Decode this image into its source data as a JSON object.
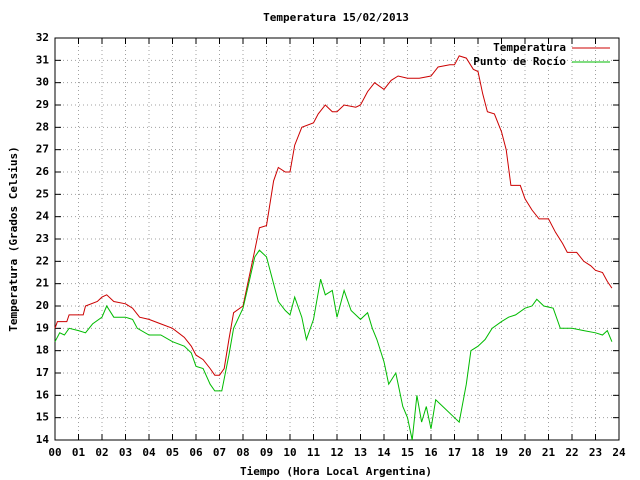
{
  "chart_data": {
    "type": "line",
    "title": "Temperatura 15/02/2013",
    "xlabel": "Tiempo (Hora Local Argentina)",
    "ylabel": "Temperatura (Grados Celsius)",
    "xlim": [
      0,
      24
    ],
    "xticks": [
      {
        "value": 0,
        "label": "00"
      },
      {
        "value": 1,
        "label": "01"
      },
      {
        "value": 2,
        "label": "02"
      },
      {
        "value": 3,
        "label": "03"
      },
      {
        "value": 4,
        "label": "04"
      },
      {
        "value": 5,
        "label": "05"
      },
      {
        "value": 6,
        "label": "06"
      },
      {
        "value": 7,
        "label": "07"
      },
      {
        "value": 8,
        "label": "08"
      },
      {
        "value": 9,
        "label": "09"
      },
      10,
      11,
      12,
      13,
      14,
      15,
      16,
      17,
      18,
      19,
      20,
      21,
      22,
      23,
      24
    ],
    "ylim": [
      14,
      32
    ],
    "yticks": [
      14,
      15,
      16,
      17,
      18,
      19,
      20,
      21,
      22,
      23,
      24,
      25,
      26,
      27,
      28,
      29,
      30,
      31,
      32
    ],
    "grid": true,
    "legend": "top-right",
    "series": [
      {
        "name": "Temperatura",
        "color": "#cc0000",
        "x": [
          0,
          0.1,
          0.5,
          0.6,
          1,
          1.2,
          1.3,
          1.8,
          2.0,
          2.2,
          2.5,
          3.0,
          3.3,
          3.6,
          4.0,
          4.5,
          5.0,
          5.5,
          5.8,
          6.0,
          6.3,
          6.6,
          6.8,
          7.0,
          7.2,
          7.4,
          7.6,
          8.0,
          8.2,
          8.5,
          8.7,
          9.0,
          9.3,
          9.5,
          9.8,
          10.0,
          10.2,
          10.5,
          11,
          11.2,
          11.5,
          11.8,
          12.0,
          12.3,
          12.8,
          13.0,
          13.3,
          13.6,
          14.0,
          14.3,
          14.6,
          15.0,
          15.5,
          16.0,
          16.3,
          16.8,
          17.0,
          17.2,
          17.5,
          17.8,
          18.0,
          18.2,
          18.4,
          18.7,
          19.0,
          19.2,
          19.4,
          19.8,
          20.0,
          20.3,
          20.6,
          21.0,
          21.3,
          21.6,
          21.8,
          22.2,
          22.5,
          22.8,
          23.0,
          23.3,
          23.5,
          23.7
        ],
        "values": [
          19.0,
          19.3,
          19.3,
          19.6,
          19.6,
          19.6,
          20.0,
          20.2,
          20.4,
          20.5,
          20.2,
          20.1,
          19.9,
          19.5,
          19.4,
          19.2,
          19.0,
          18.6,
          18.2,
          17.8,
          17.6,
          17.2,
          16.9,
          16.9,
          17.2,
          18.5,
          19.7,
          20.0,
          21.0,
          22.5,
          23.5,
          23.6,
          25.6,
          26.2,
          26.0,
          26.0,
          27.2,
          28.0,
          28.2,
          28.6,
          29.0,
          28.7,
          28.7,
          29.0,
          28.9,
          29.0,
          29.6,
          30.0,
          29.7,
          30.1,
          30.3,
          30.2,
          30.2,
          30.3,
          30.7,
          30.8,
          30.8,
          31.2,
          31.1,
          30.6,
          30.5,
          29.5,
          28.7,
          28.6,
          27.8,
          27.0,
          25.4,
          25.4,
          24.8,
          24.3,
          23.9,
          23.9,
          23.3,
          22.8,
          22.4,
          22.4,
          22.0,
          21.8,
          21.6,
          21.5,
          21.1,
          20.8
        ]
      },
      {
        "name": "Punto de Rocío",
        "color": "#00bb00",
        "x": [
          0,
          0.2,
          0.4,
          0.6,
          1.0,
          1.3,
          1.6,
          2.0,
          2.2,
          2.5,
          3.0,
          3.3,
          3.5,
          4.0,
          4.5,
          5.0,
          5.5,
          5.8,
          6.0,
          6.3,
          6.6,
          6.8,
          7.1,
          7.4,
          7.6,
          8.0,
          8.2,
          8.5,
          8.7,
          9.0,
          9.3,
          9.5,
          9.8,
          10.0,
          10.2,
          10.5,
          10.7,
          11.0,
          11.3,
          11.5,
          11.8,
          12.0,
          12.3,
          12.6,
          13.0,
          13.3,
          13.5,
          13.7,
          14.0,
          14.2,
          14.5,
          14.8,
          15.0,
          15.2,
          15.4,
          15.6,
          15.8,
          16.0,
          16.2,
          16.5,
          17.0,
          17.2,
          17.5,
          17.7,
          18.0,
          18.3,
          18.6,
          19.0,
          19.3,
          19.6,
          20.0,
          20.3,
          20.5,
          20.8,
          21.2,
          21.5,
          22.0,
          22.5,
          23.0,
          23.3,
          23.5,
          23.7
        ],
        "values": [
          18.4,
          18.8,
          18.7,
          19.0,
          18.9,
          18.8,
          19.2,
          19.5,
          20.0,
          19.5,
          19.5,
          19.4,
          19.0,
          18.7,
          18.7,
          18.4,
          18.2,
          17.9,
          17.3,
          17.2,
          16.5,
          16.2,
          16.2,
          17.8,
          19.0,
          19.9,
          20.8,
          22.2,
          22.5,
          22.2,
          21.0,
          20.2,
          19.8,
          19.6,
          20.4,
          19.5,
          18.5,
          19.4,
          21.2,
          20.5,
          20.7,
          19.5,
          20.7,
          19.8,
          19.4,
          19.7,
          19.0,
          18.5,
          17.5,
          16.5,
          17.0,
          15.5,
          15.0,
          14.0,
          16.0,
          14.8,
          15.5,
          14.5,
          15.8,
          15.5,
          15.0,
          14.8,
          16.5,
          18.0,
          18.2,
          18.5,
          19.0,
          19.3,
          19.5,
          19.6,
          19.9,
          20.0,
          20.3,
          20.0,
          19.9,
          19.0,
          19.0,
          18.9,
          18.8,
          18.7,
          18.9,
          18.4
        ]
      }
    ]
  }
}
